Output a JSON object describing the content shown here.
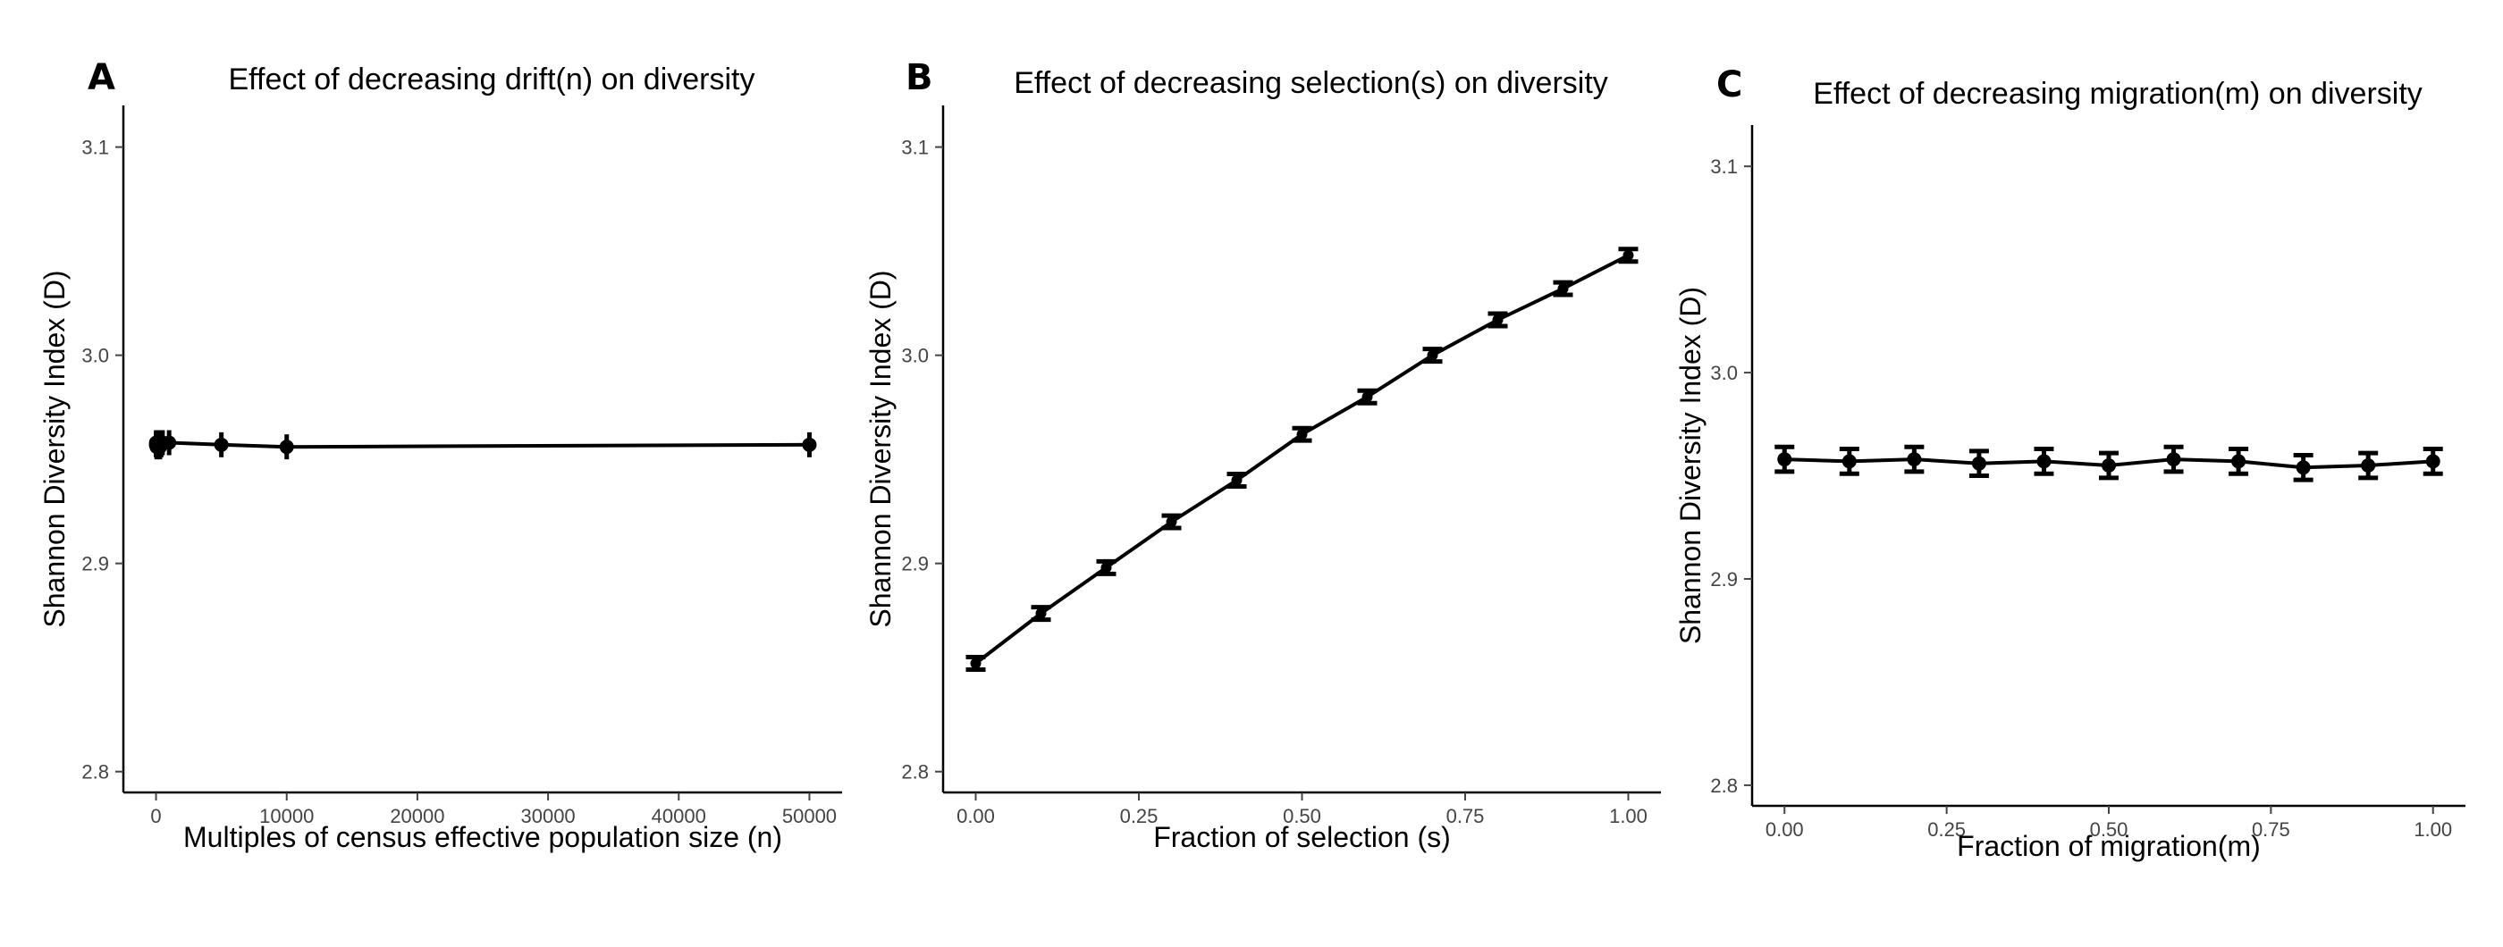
{
  "chart_data": [
    {
      "panel_label": "A",
      "type": "line",
      "title": "Effect of decreasing drift(n) on diversity",
      "xlabel": "Multiples of census effective population size (n)",
      "ylabel": "Shannon Diversity Index (D)",
      "xlim": [
        -2500,
        52500
      ],
      "ylim": [
        2.79,
        3.12
      ],
      "xticks": [
        0,
        10000,
        20000,
        30000,
        40000,
        50000
      ],
      "xtick_labels": [
        "0",
        "10000",
        "20000",
        "30000",
        "40000",
        "50000"
      ],
      "yticks": [
        2.8,
        2.9,
        3.0,
        3.1
      ],
      "ytick_labels": [
        "2.8",
        "2.9",
        "3.0",
        "3.1"
      ],
      "grid": false,
      "series": [
        {
          "x": [
            1,
            10,
            50,
            100,
            200,
            300,
            400,
            500,
            1000,
            5000,
            10000,
            50000
          ],
          "y": [
            2.957,
            2.958,
            2.956,
            2.957,
            2.958,
            2.956,
            2.957,
            2.958,
            2.958,
            2.957,
            2.956,
            2.957
          ],
          "error": [
            0.006,
            0.006,
            0.006,
            0.006,
            0.006,
            0.006,
            0.006,
            0.006,
            0.006,
            0.006,
            0.006,
            0.006
          ]
        }
      ]
    },
    {
      "panel_label": "B",
      "type": "line",
      "title": "Effect of decreasing selection(s) on diversity",
      "xlabel": "Fraction of selection (s)",
      "ylabel": "Shannon Diversity Index (D)",
      "xlim": [
        -0.05,
        1.05
      ],
      "ylim": [
        2.79,
        3.12
      ],
      "xticks": [
        0,
        0.25,
        0.5,
        0.75,
        1.0
      ],
      "xtick_labels": [
        "0.00",
        "0.25",
        "0.50",
        "0.75",
        "1.00"
      ],
      "yticks": [
        2.8,
        2.9,
        3.0,
        3.1
      ],
      "ytick_labels": [
        "2.8",
        "2.9",
        "3.0",
        "3.1"
      ],
      "grid": false,
      "series": [
        {
          "x": [
            0,
            0.1,
            0.2,
            0.3,
            0.4,
            0.5,
            0.6,
            0.7,
            0.8,
            0.9,
            1.0
          ],
          "y": [
            2.852,
            2.876,
            2.898,
            2.92,
            2.94,
            2.962,
            2.98,
            3.0,
            3.017,
            3.032,
            3.048
          ],
          "error": [
            0.003,
            0.003,
            0.003,
            0.003,
            0.003,
            0.003,
            0.003,
            0.003,
            0.003,
            0.003,
            0.003
          ]
        }
      ]
    },
    {
      "panel_label": "C",
      "type": "line",
      "title": "Effect of decreasing migration(m) on diversity",
      "xlabel": "Fraction of migration(m)",
      "ylabel": "Shannon Diversity Index (D)",
      "xlim": [
        -0.05,
        1.05
      ],
      "ylim": [
        2.79,
        3.12
      ],
      "xticks": [
        0,
        0.25,
        0.5,
        0.75,
        1.0
      ],
      "xtick_labels": [
        "0.00",
        "0.25",
        "0.50",
        "0.75",
        "1.00"
      ],
      "yticks": [
        2.8,
        2.9,
        3.0,
        3.1
      ],
      "ytick_labels": [
        "2.8",
        "2.9",
        "3.0",
        "3.1"
      ],
      "grid": false,
      "series": [
        {
          "x": [
            0,
            0.1,
            0.2,
            0.3,
            0.4,
            0.5,
            0.6,
            0.7,
            0.8,
            0.9,
            1.0
          ],
          "y": [
            2.958,
            2.957,
            2.958,
            2.956,
            2.957,
            2.955,
            2.958,
            2.957,
            2.954,
            2.955,
            2.957
          ],
          "error": [
            0.006,
            0.006,
            0.006,
            0.006,
            0.006,
            0.006,
            0.006,
            0.006,
            0.006,
            0.006,
            0.006
          ]
        }
      ]
    }
  ]
}
